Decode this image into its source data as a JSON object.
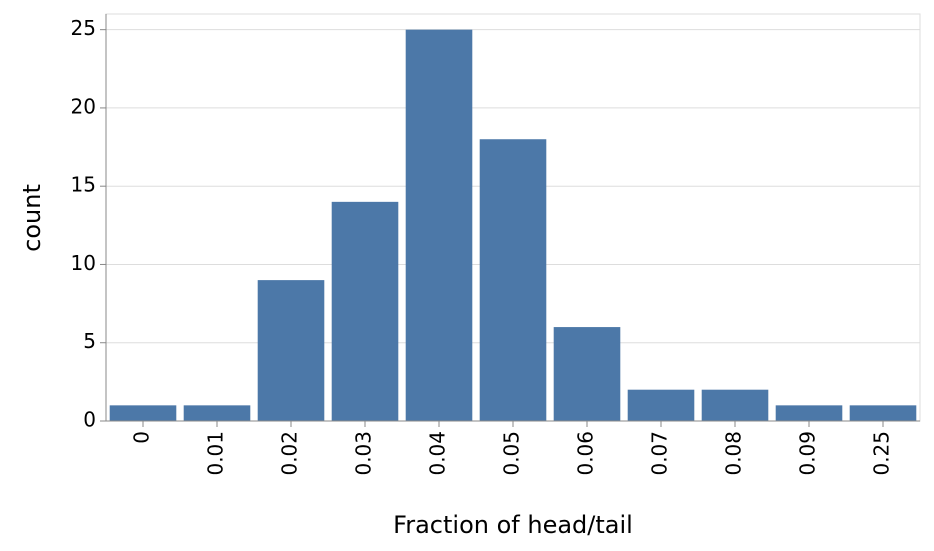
{
  "chart_data": {
    "type": "bar",
    "x_label": "Fraction of head/tail",
    "y_label": "count",
    "categories": [
      "0",
      "0.01",
      "0.02",
      "0.03",
      "0.04",
      "0.05",
      "0.06",
      "0.07",
      "0.08",
      "0.09",
      "0.25"
    ],
    "values": [
      1,
      1,
      9,
      14,
      25,
      18,
      6,
      2,
      2,
      1,
      1
    ],
    "color": "#4c78a8",
    "ylim": [
      0,
      26
    ],
    "yticks": [
      0,
      5,
      10,
      15,
      20,
      25
    ],
    "grid": true
  }
}
